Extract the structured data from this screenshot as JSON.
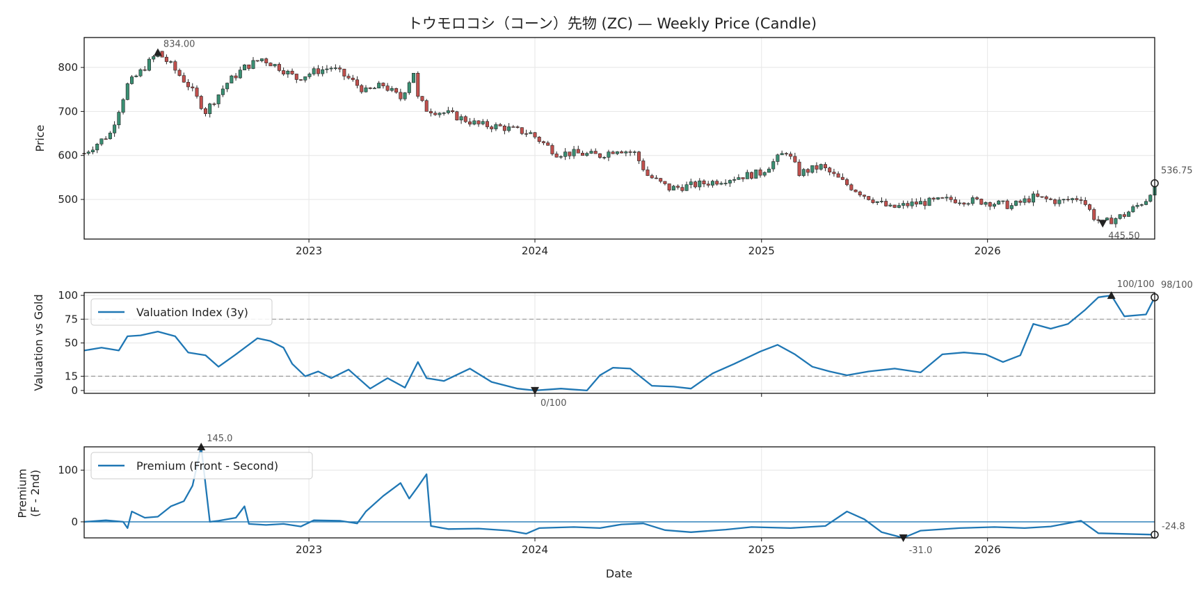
{
  "chart_data": [
    {
      "type": "candlestick",
      "title": "トウモロコシ（コーン）先物 (ZC) — Weekly Price (Candle)",
      "ylabel": "Price",
      "ylim": [
        410,
        868
      ],
      "yticks": [
        500,
        600,
        700,
        800
      ],
      "xlim": [
        "2022-01-03",
        "2026-09-28"
      ],
      "xticks": [
        "2023",
        "2024",
        "2025",
        "2026"
      ],
      "grid": true,
      "up_color": "#3a8f73",
      "down_color": "#c0504d",
      "keypoints": [
        [
          "2022-01-03",
          605
        ],
        [
          "2022-02-14",
          650
        ],
        [
          "2022-03-14",
          760
        ],
        [
          "2022-04-04",
          790
        ],
        [
          "2022-05-02",
          834
        ],
        [
          "2022-05-23",
          805
        ],
        [
          "2022-06-20",
          760
        ],
        [
          "2022-07-18",
          700
        ],
        [
          "2022-08-22",
          765
        ],
        [
          "2022-09-19",
          800
        ],
        [
          "2022-10-17",
          820
        ],
        [
          "2022-11-14",
          800
        ],
        [
          "2022-12-12",
          775
        ],
        [
          "2023-01-09",
          790
        ],
        [
          "2023-02-06",
          800
        ],
        [
          "2023-03-06",
          775
        ],
        [
          "2023-04-03",
          745
        ],
        [
          "2023-05-01",
          760
        ],
        [
          "2023-05-29",
          730
        ],
        [
          "2023-06-19",
          790
        ],
        [
          "2023-06-26",
          730
        ],
        [
          "2023-07-10",
          705
        ],
        [
          "2023-08-14",
          695
        ],
        [
          "2023-10-02",
          670
        ],
        [
          "2023-11-06",
          665
        ],
        [
          "2023-12-25",
          650
        ],
        [
          "2024-02-05",
          605
        ],
        [
          "2024-03-04",
          605
        ],
        [
          "2024-04-15",
          600
        ],
        [
          "2024-05-13",
          615
        ],
        [
          "2024-06-10",
          605
        ],
        [
          "2024-07-01",
          555
        ],
        [
          "2024-08-05",
          525
        ],
        [
          "2024-09-02",
          530
        ],
        [
          "2024-10-14",
          540
        ],
        [
          "2024-11-18",
          550
        ],
        [
          "2024-12-30",
          560
        ],
        [
          "2025-02-10",
          610
        ],
        [
          "2025-03-03",
          560
        ],
        [
          "2025-04-07",
          575
        ],
        [
          "2025-05-12",
          540
        ],
        [
          "2025-06-16",
          510
        ],
        [
          "2025-07-28",
          480
        ],
        [
          "2025-09-01",
          490
        ],
        [
          "2025-11-03",
          500
        ],
        [
          "2025-12-29",
          495
        ],
        [
          "2026-02-09",
          485
        ],
        [
          "2026-03-16",
          505
        ],
        [
          "2026-04-27",
          495
        ],
        [
          "2026-06-01",
          505
        ],
        [
          "2026-06-22",
          460
        ],
        [
          "2026-07-06",
          445.5
        ],
        [
          "2026-08-10",
          465
        ],
        [
          "2026-09-14",
          500
        ],
        [
          "2026-09-28",
          536.75
        ]
      ],
      "annotations": [
        {
          "date": "2022-05-02",
          "value": 834.0,
          "label": "834.00",
          "marker": "max"
        },
        {
          "date": "2026-07-06",
          "value": 445.5,
          "label": "445.50",
          "marker": "min"
        },
        {
          "date": "2026-09-28",
          "value": 536.75,
          "label": "536.75",
          "marker": "last"
        }
      ]
    },
    {
      "type": "line",
      "ylabel": "Valuation vs Gold",
      "ylim": [
        -3,
        103
      ],
      "yticks": [
        0,
        15,
        50,
        75,
        100
      ],
      "hlines": [
        15,
        75
      ],
      "xticks": [
        "2023",
        "2024",
        "2025",
        "2026"
      ],
      "grid": true,
      "legend_position": "upper left",
      "series": [
        {
          "name": "Valuation Index (3y)",
          "color": "#1f77b4",
          "points": [
            [
              "2022-01-03",
              42
            ],
            [
              "2022-01-31",
              45
            ],
            [
              "2022-02-28",
              42
            ],
            [
              "2022-03-14",
              57
            ],
            [
              "2022-04-04",
              58
            ],
            [
              "2022-05-02",
              62
            ],
            [
              "2022-05-30",
              57
            ],
            [
              "2022-06-20",
              40
            ],
            [
              "2022-07-18",
              37
            ],
            [
              "2022-08-08",
              25
            ],
            [
              "2022-09-05",
              38
            ],
            [
              "2022-10-10",
              55
            ],
            [
              "2022-10-31",
              52
            ],
            [
              "2022-11-21",
              45
            ],
            [
              "2022-12-05",
              28
            ],
            [
              "2022-12-26",
              15
            ],
            [
              "2023-01-16",
              20
            ],
            [
              "2023-02-06",
              13
            ],
            [
              "2023-03-06",
              22
            ],
            [
              "2023-04-10",
              2
            ],
            [
              "2023-05-08",
              13
            ],
            [
              "2023-06-05",
              3
            ],
            [
              "2023-06-26",
              30
            ],
            [
              "2023-07-10",
              13
            ],
            [
              "2023-08-07",
              10
            ],
            [
              "2023-09-18",
              23
            ],
            [
              "2023-10-23",
              9
            ],
            [
              "2023-12-04",
              2
            ],
            [
              "2024-01-01",
              0
            ],
            [
              "2024-02-12",
              2
            ],
            [
              "2024-03-25",
              0
            ],
            [
              "2024-04-15",
              16
            ],
            [
              "2024-05-06",
              24
            ],
            [
              "2024-06-03",
              23
            ],
            [
              "2024-07-08",
              5
            ],
            [
              "2024-08-12",
              4
            ],
            [
              "2024-09-09",
              2
            ],
            [
              "2024-10-14",
              18
            ],
            [
              "2024-11-18",
              28
            ],
            [
              "2024-12-30",
              41
            ],
            [
              "2025-01-27",
              48
            ],
            [
              "2025-02-24",
              38
            ],
            [
              "2025-03-24",
              25
            ],
            [
              "2025-04-21",
              20
            ],
            [
              "2025-05-19",
              16
            ],
            [
              "2025-06-23",
              20
            ],
            [
              "2025-08-04",
              23
            ],
            [
              "2025-09-15",
              19
            ],
            [
              "2025-10-20",
              38
            ],
            [
              "2025-11-24",
              40
            ],
            [
              "2025-12-29",
              38
            ],
            [
              "2026-01-26",
              30
            ],
            [
              "2026-02-23",
              37
            ],
            [
              "2026-03-16",
              70
            ],
            [
              "2026-04-13",
              65
            ],
            [
              "2026-05-11",
              70
            ],
            [
              "2026-06-08",
              85
            ],
            [
              "2026-06-29",
              98
            ],
            [
              "2026-07-20",
              100
            ],
            [
              "2026-08-10",
              78
            ],
            [
              "2026-09-14",
              80
            ],
            [
              "2026-09-28",
              98
            ]
          ]
        }
      ],
      "annotations": [
        {
          "date": "2024-01-01",
          "value": 0,
          "label": "0/100",
          "marker": "min"
        },
        {
          "date": "2026-07-20",
          "value": 100,
          "label": "100/100",
          "marker": "max"
        },
        {
          "date": "2026-09-28",
          "value": 98,
          "label": "98/100",
          "marker": "last"
        }
      ]
    },
    {
      "type": "line",
      "ylabel": "Premium\n(F - 2nd)",
      "ylim": [
        -31,
        145
      ],
      "yticks": [
        0,
        100
      ],
      "hlines": [
        0
      ],
      "xlabel": "Date",
      "xticks": [
        "2023",
        "2024",
        "2025",
        "2026"
      ],
      "grid": true,
      "legend_position": "upper left",
      "series": [
        {
          "name": "Premium (Front - Second)",
          "color": "#1f77b4",
          "points": [
            [
              "2022-01-03",
              0
            ],
            [
              "2022-02-07",
              3
            ],
            [
              "2022-03-07",
              0
            ],
            [
              "2022-03-14",
              -12
            ],
            [
              "2022-03-21",
              20
            ],
            [
              "2022-04-11",
              8
            ],
            [
              "2022-05-02",
              10
            ],
            [
              "2022-05-23",
              30
            ],
            [
              "2022-06-13",
              40
            ],
            [
              "2022-06-27",
              70
            ],
            [
              "2022-07-11",
              145
            ],
            [
              "2022-07-25",
              0
            ],
            [
              "2022-08-08",
              2
            ],
            [
              "2022-09-05",
              8
            ],
            [
              "2022-09-19",
              30
            ],
            [
              "2022-09-26",
              -4
            ],
            [
              "2022-10-24",
              -6
            ],
            [
              "2022-11-21",
              -4
            ],
            [
              "2022-12-19",
              -9
            ],
            [
              "2023-01-09",
              3
            ],
            [
              "2023-02-20",
              2
            ],
            [
              "2023-03-20",
              -3
            ],
            [
              "2023-04-03",
              20
            ],
            [
              "2023-05-01",
              50
            ],
            [
              "2023-05-29",
              75
            ],
            [
              "2023-06-12",
              45
            ],
            [
              "2023-06-26",
              68
            ],
            [
              "2023-07-10",
              92
            ],
            [
              "2023-07-17",
              -8
            ],
            [
              "2023-08-14",
              -14
            ],
            [
              "2023-10-02",
              -13
            ],
            [
              "2023-11-20",
              -17
            ],
            [
              "2023-12-18",
              -23
            ],
            [
              "2024-01-08",
              -12
            ],
            [
              "2024-03-04",
              -10
            ],
            [
              "2024-04-15",
              -12
            ],
            [
              "2024-05-20",
              -5
            ],
            [
              "2024-06-24",
              -3
            ],
            [
              "2024-07-29",
              -16
            ],
            [
              "2024-09-09",
              -20
            ],
            [
              "2024-11-04",
              -15
            ],
            [
              "2024-12-16",
              -10
            ],
            [
              "2025-02-17",
              -12
            ],
            [
              "2025-04-14",
              -8
            ],
            [
              "2025-05-19",
              20
            ],
            [
              "2025-06-16",
              5
            ],
            [
              "2025-07-14",
              -20
            ],
            [
              "2025-08-18",
              -31
            ],
            [
              "2025-09-15",
              -17
            ],
            [
              "2025-11-17",
              -12
            ],
            [
              "2026-01-12",
              -10
            ],
            [
              "2026-03-02",
              -12
            ],
            [
              "2026-04-13",
              -9
            ],
            [
              "2026-06-01",
              2
            ],
            [
              "2026-06-29",
              -22
            ],
            [
              "2026-09-28",
              -24.8
            ]
          ]
        }
      ],
      "annotations": [
        {
          "date": "2022-07-11",
          "value": 145.0,
          "label": "145.0",
          "marker": "max"
        },
        {
          "date": "2025-08-18",
          "value": -31.0,
          "label": "-31.0",
          "marker": "min"
        },
        {
          "date": "2026-09-28",
          "value": -24.8,
          "label": "-24.8",
          "marker": "last"
        }
      ]
    }
  ]
}
